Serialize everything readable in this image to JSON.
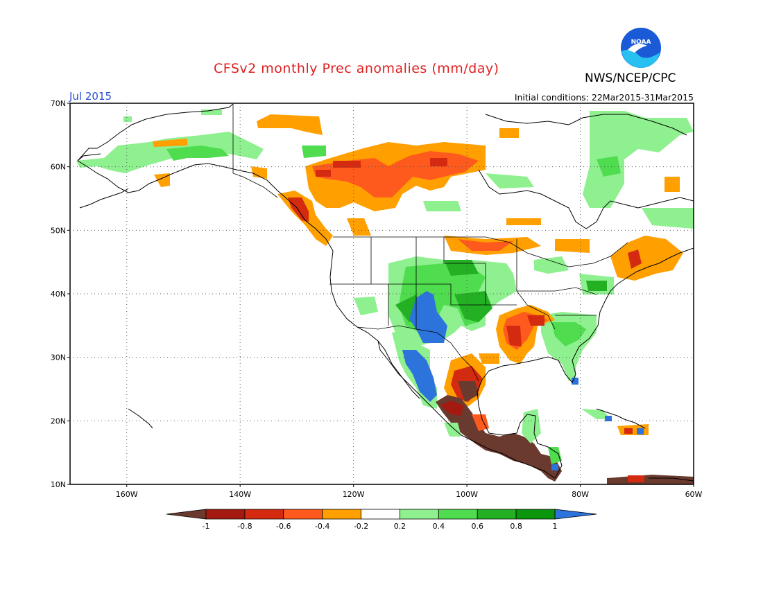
{
  "header": {
    "title": "CFSv2 monthly Prec anomalies (mm/day)",
    "agency": "NWS/NCEP/CPC",
    "logo_text": "NOAA",
    "month": "Jul 2015",
    "initial_conditions": "Initial conditions: 22Mar2015-31Mar2015"
  },
  "map": {
    "lat_labels": [
      "70N",
      "60N",
      "50N",
      "40N",
      "30N",
      "20N",
      "10N"
    ],
    "lon_labels": [
      "160W",
      "140W",
      "120W",
      "100W",
      "80W",
      "60W"
    ]
  },
  "colorbar": {
    "labels": [
      "-1",
      "-0.8",
      "-0.6",
      "-0.4",
      "-0.2",
      "0.2",
      "0.4",
      "0.6",
      "0.8",
      "1"
    ],
    "colors": [
      "#6b3a2e",
      "#a51a10",
      "#d42a10",
      "#ff5a1e",
      "#ff9f00",
      "#ffffff",
      "#8ef08e",
      "#4fdc4f",
      "#23b023",
      "#0c960c",
      "#2d73dc"
    ]
  },
  "colors": {
    "title": "#e02020",
    "month": "#2a4fd6",
    "noaa_blue": "#1a5ad6",
    "noaa_cyan": "#27c0f0"
  }
}
